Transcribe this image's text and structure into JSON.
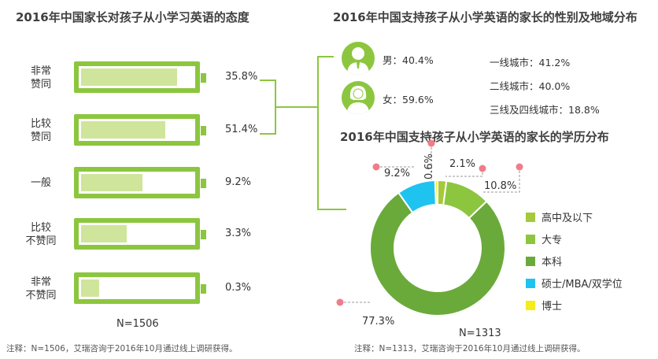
{
  "left": {
    "title": "2016年中国家长对孩子从小学习英语的态度",
    "items": [
      {
        "label": "非常\n赞同",
        "value": "35.8%",
        "fraction": 0.86
      },
      {
        "label": "比较\n赞同",
        "value": "51.4%",
        "fraction": 0.75
      },
      {
        "label": "一般",
        "value": "9.2%",
        "fraction": 0.55
      },
      {
        "label": "比较\n不赞同",
        "value": "3.3%",
        "fraction": 0.41
      },
      {
        "label": "非常\n不赞同",
        "value": "0.3%",
        "fraction": 0.16
      }
    ],
    "n": "N=1506",
    "note": "注释：N=1506，艾瑞咨询于2016年10月通过线上调研获得。"
  },
  "right_top": {
    "title": "2016年中国支持孩子从小学英语的家长的性别及地域分布",
    "male": "男：40.4%",
    "female": "女：59.6%",
    "city1": "一线城市：41.2%",
    "city2": "二线城市：40.0%",
    "city3": "三线及四线城市：18.8%",
    "male_icon": "male-user-icon",
    "female_icon": "female-user-icon"
  },
  "chart_data": {
    "type": "pie",
    "title": "2016年中国支持孩子从小学英语的家长的学历分布",
    "categories": [
      "高中及以下",
      "大专",
      "本科",
      "硕士/MBA/双学位",
      "博士"
    ],
    "values": [
      2.1,
      10.8,
      77.3,
      9.2,
      0.6
    ],
    "value_labels": [
      "2.1%",
      "10.8%",
      "77.3%",
      "9.2%",
      "0.6%"
    ],
    "colors": [
      "#a5c93a",
      "#8cc63f",
      "#6aaa3a",
      "#1fc3ef",
      "#f6ec1b"
    ],
    "n": "N=1313",
    "legend_position": "right",
    "note": "注释：N=1313，艾瑞咨询于2016年10月通过线上调研获得。"
  },
  "colors": {
    "accent": "#8cc63f",
    "battery_fill": "#cfe59b",
    "marker": "#f07c8a"
  }
}
